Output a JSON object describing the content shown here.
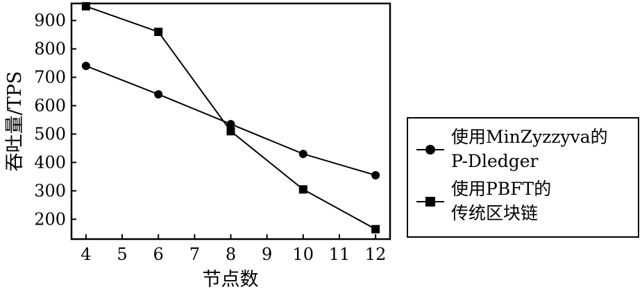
{
  "chart_data": {
    "type": "line",
    "xlabel": "节点数",
    "ylabel": "吞吐量/TPS",
    "xlim": [
      3.6,
      12.4
    ],
    "ylim": [
      130,
      960
    ],
    "xticks": [
      4,
      5,
      6,
      7,
      8,
      9,
      10,
      11,
      12
    ],
    "yticks": [
      200,
      300,
      400,
      500,
      600,
      700,
      800,
      900
    ],
    "grid": false,
    "legend_position": "right",
    "series": [
      {
        "name_lines": [
          "使用MinZyzzyva的",
          "P-Dledger"
        ],
        "marker": "circle",
        "color": "#000000",
        "x": [
          4,
          6,
          8,
          10,
          12
        ],
        "y": [
          740,
          640,
          535,
          430,
          355
        ]
      },
      {
        "name_lines": [
          "使用PBFT的",
          "传统区块链"
        ],
        "marker": "square",
        "color": "#000000",
        "x": [
          4,
          6,
          8,
          10,
          12
        ],
        "y": [
          950,
          860,
          510,
          305,
          165
        ]
      }
    ]
  }
}
